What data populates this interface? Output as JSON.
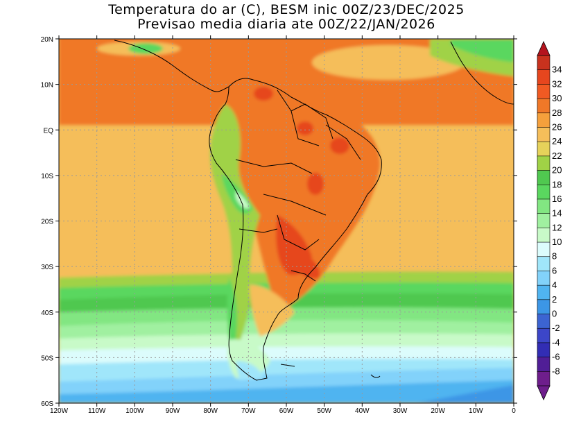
{
  "title_line1": "Temperatura do ar (C), BESM inic 00Z/23/DEC/2025",
  "title_line2": "Previsao media diaria ate 00Z/22/JAN/2026",
  "map": {
    "lon_range": [
      -120,
      0
    ],
    "lat_range": [
      -60,
      20
    ],
    "lat_labels": [
      "20N",
      "10N",
      "EQ",
      "10S",
      "20S",
      "30S",
      "40S",
      "50S",
      "60S"
    ],
    "lon_labels": [
      "120W",
      "110W",
      "100W",
      "90W",
      "80W",
      "70W",
      "60W",
      "50W",
      "40W",
      "30W",
      "20W",
      "10W",
      "0"
    ],
    "grid": "dotted"
  },
  "colorbar": {
    "labels": [
      "34",
      "32",
      "30",
      "28",
      "26",
      "24",
      "22",
      "20",
      "18",
      "16",
      "14",
      "12",
      "10",
      "8",
      "6",
      "4",
      "2",
      "0",
      "-2",
      "-4",
      "-6",
      "-8"
    ],
    "colors": [
      "#c8321e",
      "#e6461e",
      "#f05a23",
      "#f07828",
      "#f5a03c",
      "#f5be5a",
      "#e6d25a",
      "#a0d246",
      "#50c850",
      "#5ad75f",
      "#82e682",
      "#a0f0a0",
      "#c8fac8",
      "#dcfcfc",
      "#a0e6fa",
      "#82d2fa",
      "#50b4f0",
      "#3c96e6",
      "#3c64d2",
      "#3c46c8",
      "#322db4",
      "#501e96",
      "#6e1e8c"
    ],
    "over_color": "#b4141e",
    "under_color": "#6e1e8c"
  }
}
